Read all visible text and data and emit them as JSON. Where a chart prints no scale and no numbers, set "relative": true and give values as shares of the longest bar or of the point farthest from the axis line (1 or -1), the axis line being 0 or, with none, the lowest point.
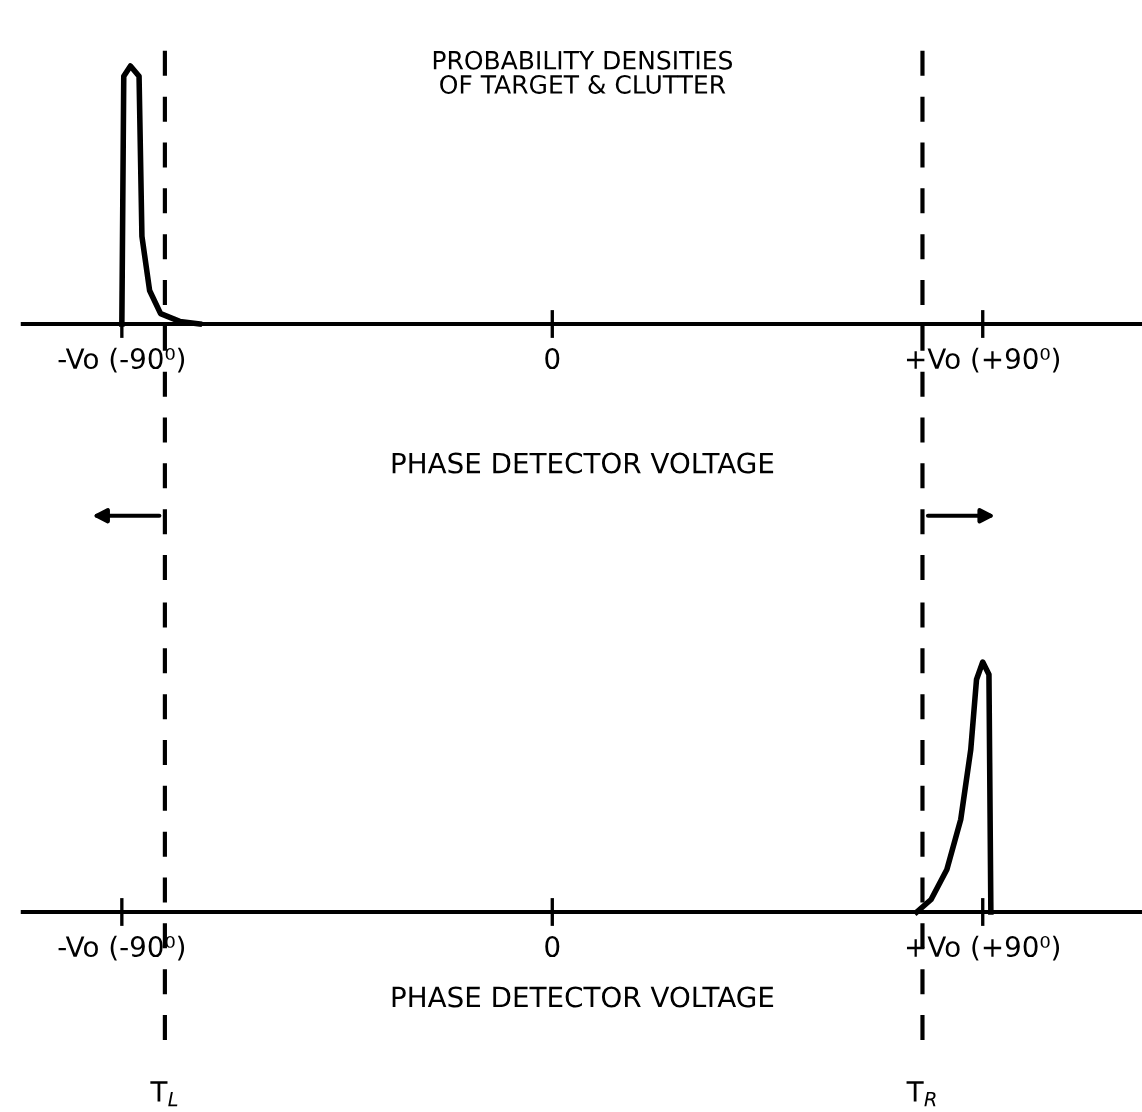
{
  "chart_data": [
    {
      "type": "line",
      "title": "PROBABILITY DENSITIES\nOF TARGET & CLUTTER",
      "xlabel": "PHASE DETECTOR VOLTAGE",
      "relative": true,
      "legend": false,
      "grid": false,
      "marker": "none",
      "line_style": "solid",
      "xlim": [
        -110.7,
        123.3
      ],
      "xticks": [
        {
          "value": -90,
          "label": "-Vo (-90⁰)"
        },
        {
          "value": 0,
          "label": "0"
        },
        {
          "value": 90,
          "label": "+Vo (+90⁰)"
        }
      ],
      "series": [
        {
          "color": "#000000",
          "x": [
            -90,
            -89.6,
            -88.2,
            -86.4,
            -85.8,
            -84.2,
            -81.9,
            -77.9,
            -73.8
          ],
          "values": [
            0,
            0.96,
            1,
            0.96,
            0.34,
            0.13,
            0.04,
            0.01,
            0
          ]
        }
      ],
      "ref_lines": [
        {
          "axis": "x",
          "value": -81,
          "line_style": "dashed",
          "color": "#000000"
        },
        {
          "axis": "x",
          "value": 77.4,
          "line_style": "dashed",
          "color": "#000000"
        }
      ]
    },
    {
      "type": "line",
      "xlabel": "PHASE DETECTOR VOLTAGE",
      "relative": true,
      "legend": false,
      "grid": false,
      "marker": "none",
      "line_style": "solid",
      "xlim": [
        -110.7,
        123.3
      ],
      "xticks": [
        {
          "value": -90,
          "label": "-Vo (-90⁰)"
        },
        {
          "value": 0,
          "label": "0"
        },
        {
          "value": 90,
          "label": "+Vo (+90⁰)"
        }
      ],
      "series": [
        {
          "color": "#000000",
          "x": [
            76.2,
            79.2,
            82.5,
            85.4,
            87.5,
            88.7,
            90,
            91.3,
            91.7
          ],
          "values": [
            0,
            0.05,
            0.17,
            0.37,
            0.65,
            0.93,
            1,
            0.95,
            0
          ]
        }
      ],
      "ref_lines": [
        {
          "axis": "x",
          "value": -81,
          "label": "T$_{L}$",
          "line_style": "dashed",
          "color": "#000000"
        },
        {
          "axis": "x",
          "value": 77.4,
          "label": "T$_{R}$",
          "line_style": "dashed",
          "color": "#000000"
        }
      ]
    }
  ]
}
